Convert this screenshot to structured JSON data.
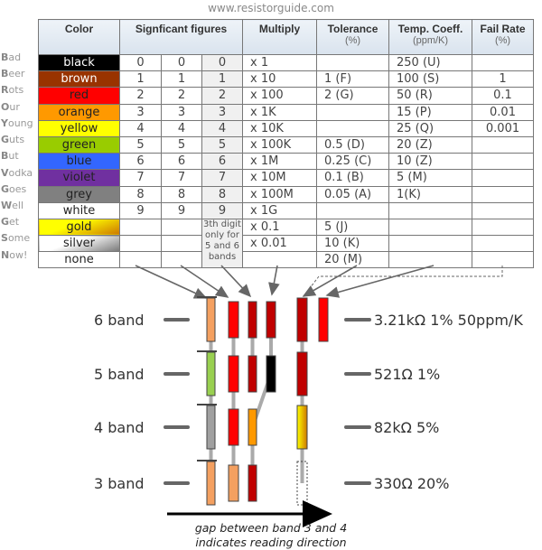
{
  "site": "www.resistorguide.com",
  "headers": {
    "color": "Color",
    "significant": "Signficant figures",
    "multiply": "Multiply",
    "tolerance": "Tolerance",
    "tolerance_unit": "(%)",
    "temp": "Temp. Coeff.",
    "temp_unit": "(ppm/K)",
    "fail": "Fail Rate",
    "fail_unit": "(%)"
  },
  "note": "3th digit only for 5 and 6 bands",
  "rows": [
    {
      "mn_first": "B",
      "mn_rest": "ad",
      "color": "black",
      "bg": "#000000",
      "fg": "#ffffff",
      "s1": "0",
      "s2": "0",
      "s3": "0",
      "mul": "x 1",
      "tol": "",
      "temp": "250 (U)",
      "fail": ""
    },
    {
      "mn_first": "B",
      "mn_rest": "eer",
      "color": "brown",
      "bg": "#993300",
      "fg": "#ffffff",
      "s1": "1",
      "s2": "1",
      "s3": "1",
      "mul": "x 10",
      "tol": "1 (F)",
      "temp": "100 (S)",
      "fail": "1"
    },
    {
      "mn_first": "R",
      "mn_rest": "ots",
      "color": "red",
      "bg": "#ff0000",
      "fg": "#222222",
      "s1": "2",
      "s2": "2",
      "s3": "2",
      "mul": "x 100",
      "tol": "2 (G)",
      "temp": "50 (R)",
      "fail": "0.1"
    },
    {
      "mn_first": "O",
      "mn_rest": "ur",
      "color": "orange",
      "bg": "#ff9900",
      "fg": "#222222",
      "s1": "3",
      "s2": "3",
      "s3": "3",
      "mul": "x 1K",
      "tol": "",
      "temp": "15 (P)",
      "fail": "0.01"
    },
    {
      "mn_first": "Y",
      "mn_rest": "oung",
      "color": "yellow",
      "bg": "#ffff00",
      "fg": "#222222",
      "s1": "4",
      "s2": "4",
      "s3": "4",
      "mul": "x 10K",
      "tol": "",
      "temp": "25 (Q)",
      "fail": "0.001"
    },
    {
      "mn_first": "G",
      "mn_rest": "uts",
      "color": "green",
      "bg": "#99cc00",
      "fg": "#222222",
      "s1": "5",
      "s2": "5",
      "s3": "5",
      "mul": "x 100K",
      "tol": "0.5 (D)",
      "temp": "20 (Z)",
      "fail": ""
    },
    {
      "mn_first": "B",
      "mn_rest": "ut",
      "color": "blue",
      "bg": "#3366ff",
      "fg": "#222222",
      "s1": "6",
      "s2": "6",
      "s3": "6",
      "mul": "x 1M",
      "tol": "0.25 (C)",
      "temp": "10 (Z)",
      "fail": ""
    },
    {
      "mn_first": "V",
      "mn_rest": "odka",
      "color": "violet",
      "bg": "#7030a0",
      "fg": "#222222",
      "s1": "7",
      "s2": "7",
      "s3": "7",
      "mul": "x 10M",
      "tol": "0.1 (B)",
      "temp": "5 (M)",
      "fail": ""
    },
    {
      "mn_first": "G",
      "mn_rest": "oes",
      "color": "grey",
      "bg": "#808080",
      "fg": "#222222",
      "s1": "8",
      "s2": "8",
      "s3": "8",
      "mul": "x 100M",
      "tol": "0.05 (A)",
      "temp": "1(K)",
      "fail": ""
    },
    {
      "mn_first": "W",
      "mn_rest": "ell",
      "color": "white",
      "bg": "#ffffff",
      "fg": "#222222",
      "s1": "9",
      "s2": "9",
      "s3": "9",
      "mul": "x 1G",
      "tol": "",
      "temp": "",
      "fail": ""
    },
    {
      "mn_first": "G",
      "mn_rest": "et",
      "color": "gold",
      "bg": "linear-gradient(160deg,#ffff00 40%,#cc7700)",
      "fg": "#222222",
      "s1": "",
      "s2": "",
      "s3": null,
      "mul": "x 0.1",
      "tol": "5 (J)",
      "temp": "",
      "fail": ""
    },
    {
      "mn_first": "S",
      "mn_rest": "ome",
      "color": "silver",
      "bg": "linear-gradient(160deg,#ffffff 40%,#777777)",
      "fg": "#222222",
      "s1": "",
      "s2": "",
      "s3": null,
      "mul": "x 0.01",
      "tol": "10 (K)",
      "temp": "",
      "fail": ""
    },
    {
      "mn_first": "N",
      "mn_rest": "ow!",
      "color": "none",
      "bg": "#ffffff",
      "fg": "#222222",
      "s1": "",
      "s2": "",
      "s3": null,
      "mul": "",
      "tol": "20 (M)",
      "temp": "",
      "fail": ""
    }
  ],
  "resistors": [
    {
      "label": "6 band",
      "value": "3.21kΩ 1% 50ppm/K",
      "bands": [
        "#f4a060",
        "#ff0000",
        "#c00000",
        "#c00000",
        "#c00000",
        "#ff0000"
      ]
    },
    {
      "label": "5 band",
      "value": "521Ω 1%",
      "bands": [
        "#99d050",
        "#ff0000",
        "#c00000",
        "#000000",
        "#c00000"
      ]
    },
    {
      "label": "4 band",
      "value": "82kΩ 5%",
      "bands": [
        "#a0a0a0",
        "#ff0000",
        "#ff9900",
        null,
        "gold"
      ]
    },
    {
      "label": "3 band",
      "value": "330Ω 20%",
      "bands": [
        "#f4a060",
        "#f4a060",
        "#c00000",
        null,
        "none"
      ]
    }
  ],
  "caption": [
    "gap between band 3 and 4",
    "indicates reading direction"
  ]
}
